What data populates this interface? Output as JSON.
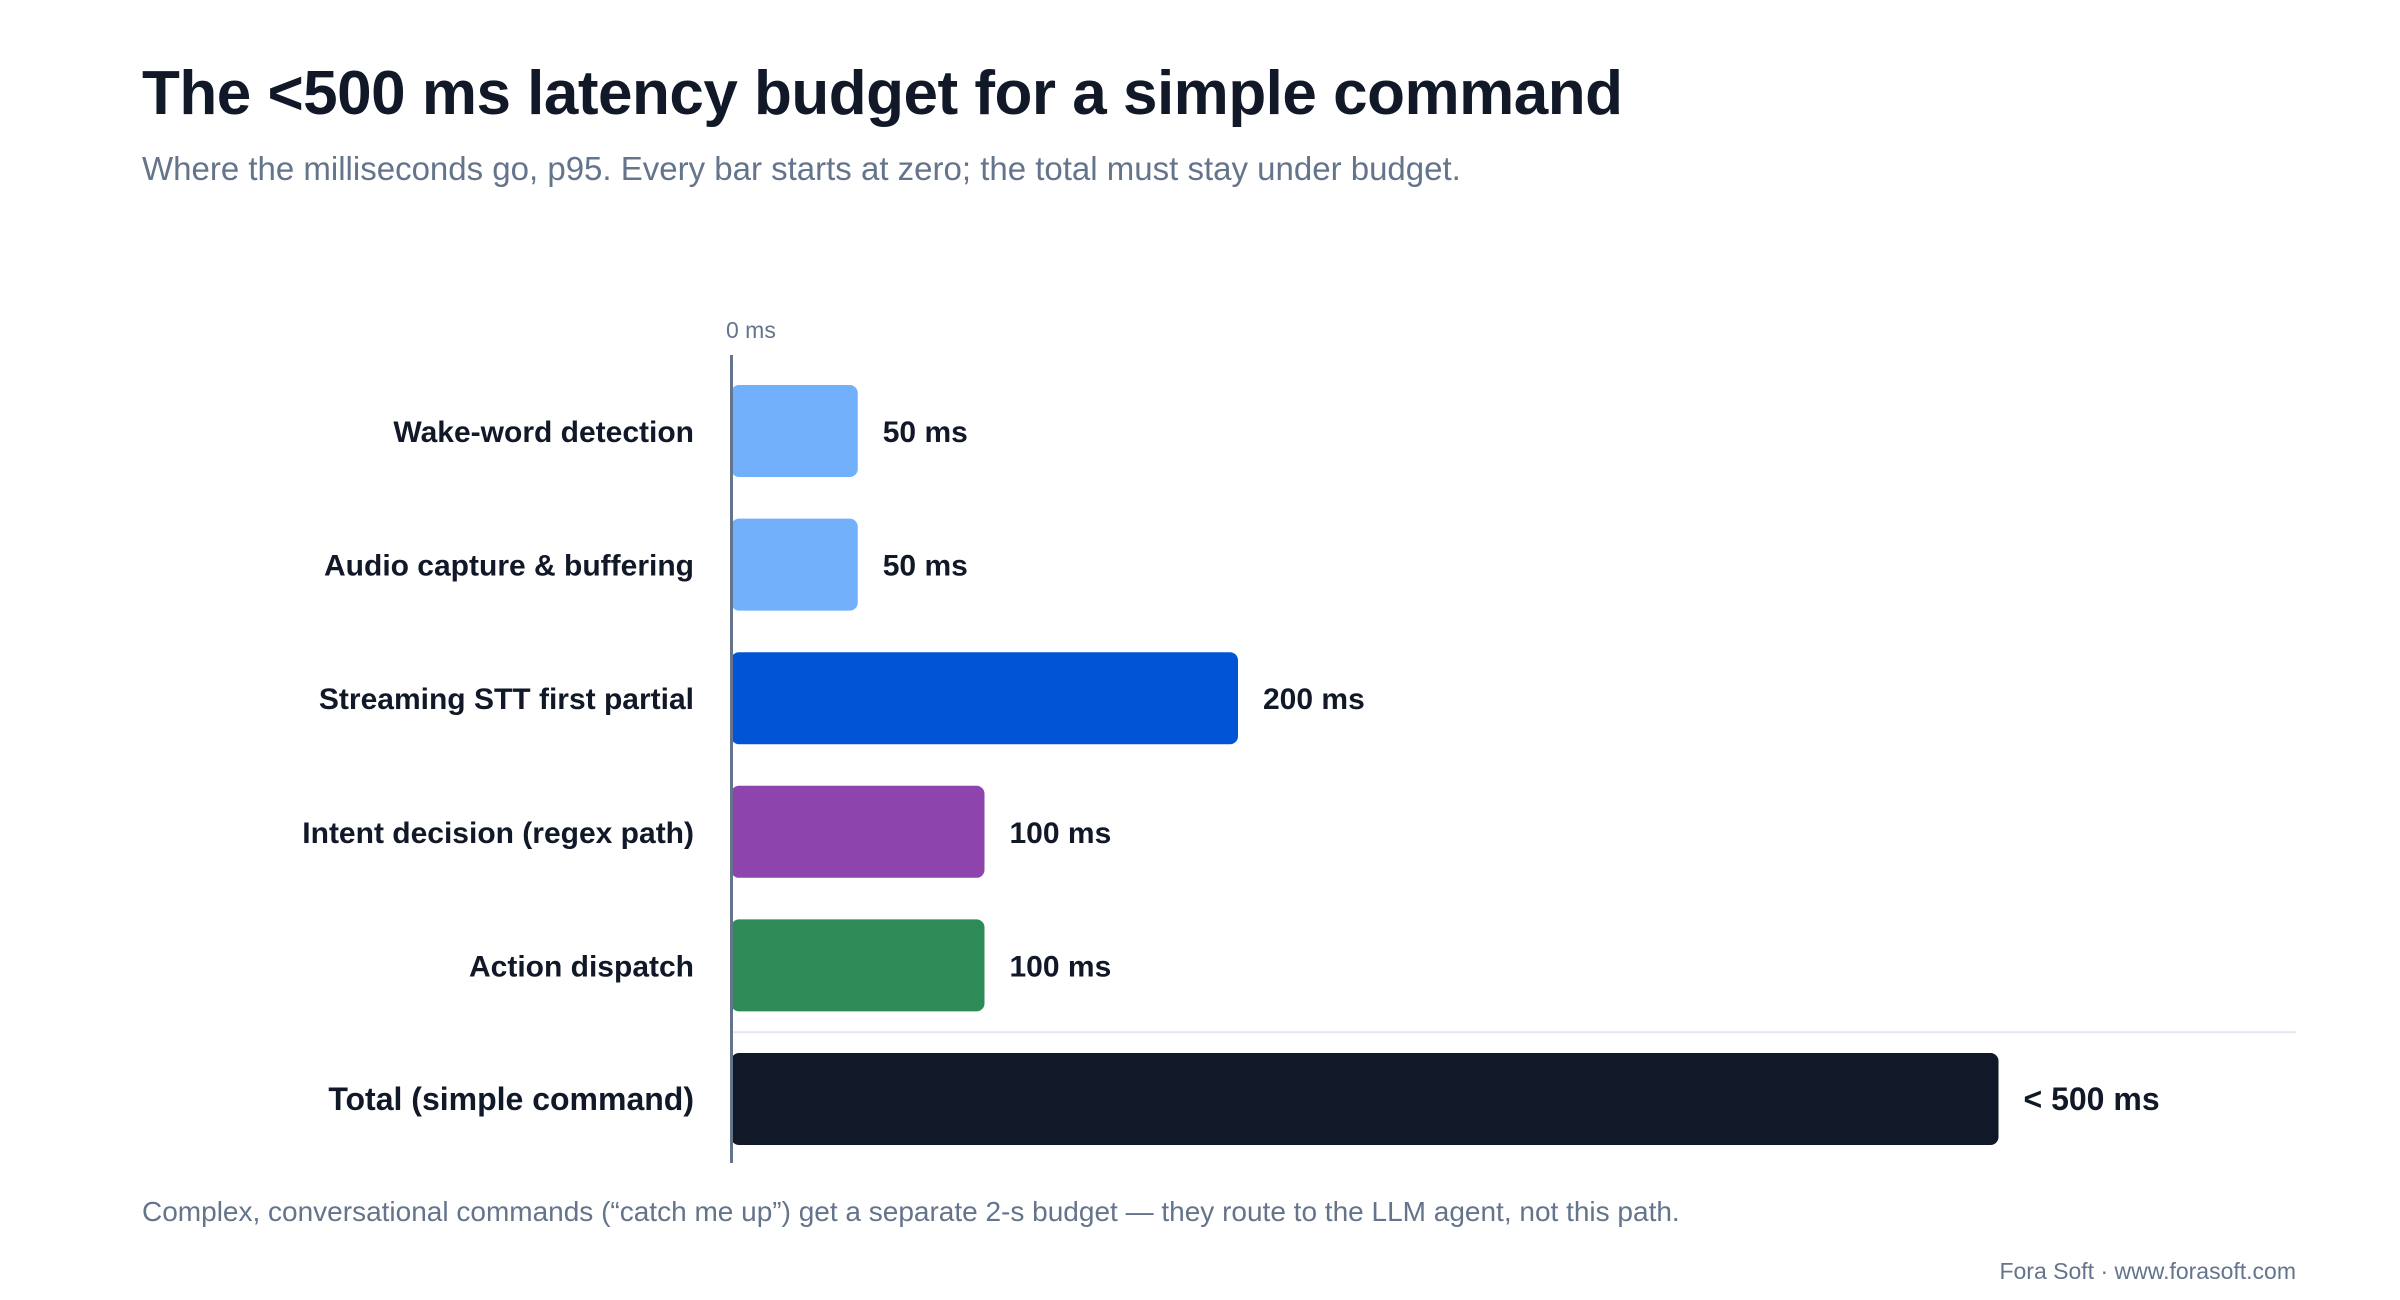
{
  "title": "The <500 ms latency budget for a simple command",
  "subtitle": "Where the milliseconds go, p95. Every bar starts at zero; the total must stay under budget.",
  "footnote": "Complex, conversational commands (“catch me up”) get a separate 2-s budget — they route to the LLM agent, not this path.",
  "credit": "Fora Soft · www.forasoft.com",
  "chart_data": {
    "type": "bar",
    "orientation": "horizontal",
    "axis_label": "0 ms",
    "xlim": [
      0,
      625
    ],
    "grid": false,
    "categories": [
      "Wake-word detection",
      "Audio capture & buffering",
      "Streaming STT first partial",
      "Intent decision (regex path)",
      "Action dispatch",
      "Total (simple command)"
    ],
    "values": [
      50,
      50,
      200,
      100,
      100,
      500
    ],
    "value_labels": [
      "50 ms",
      "50 ms",
      "200 ms",
      "100 ms",
      "100 ms",
      "< 500 ms"
    ],
    "colors": [
      "#72b0fc",
      "#72b0fc",
      "#0254d6",
      "#8e44ad",
      "#2e8b57",
      "#111827"
    ]
  }
}
